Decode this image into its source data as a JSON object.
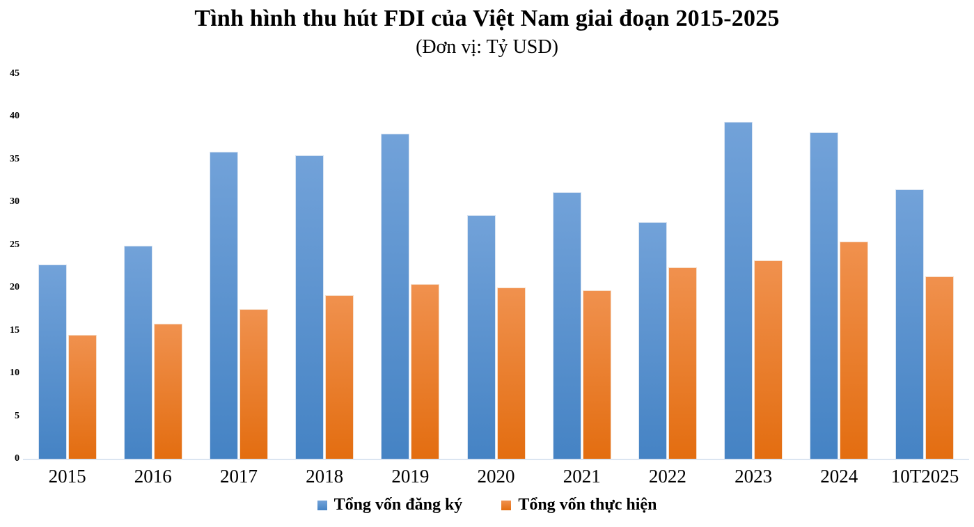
{
  "chart": {
    "title": "Tình hình thu hút FDI của Việt Nam giai đoạn 2015-2025",
    "subtitle": "(Đơn vị: Tỷ USD)"
  },
  "chart_data": {
    "type": "bar",
    "title": "Tình hình thu hút FDI của Việt Nam giai đoạn 2015-2025",
    "subtitle": "(Đơn vị: Tỷ USD)",
    "unit": "Tỷ USD",
    "categories": [
      "2015",
      "2016",
      "2017",
      "2018",
      "2019",
      "2020",
      "2021",
      "2022",
      "2023",
      "2024",
      "10T2025"
    ],
    "series": [
      {
        "name": "Tổng vốn đăng ký",
        "values": [
          22.7,
          24.9,
          35.9,
          35.5,
          38.0,
          28.5,
          31.2,
          27.7,
          39.4,
          38.2,
          31.5
        ],
        "color_top": "#72a2d9",
        "color_bottom": "#4583c4"
      },
      {
        "name": "Tổng vốn thực hiện",
        "values": [
          14.5,
          15.8,
          17.5,
          19.1,
          20.4,
          20.0,
          19.7,
          22.4,
          23.2,
          25.4,
          21.3
        ],
        "color_top": "#f0914e",
        "color_bottom": "#e36d10"
      }
    ],
    "ylim": [
      0,
      45
    ],
    "yticks": [
      0,
      5,
      10,
      15,
      20,
      25,
      30,
      35,
      40,
      45
    ],
    "grid": false,
    "legend_position": "bottom"
  }
}
